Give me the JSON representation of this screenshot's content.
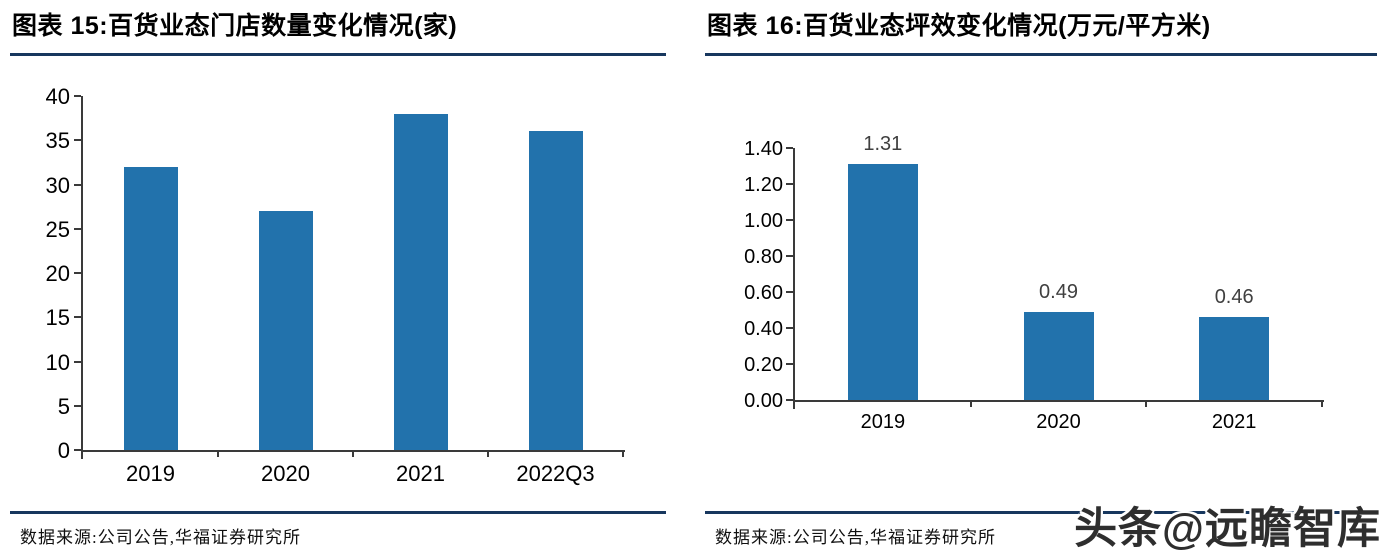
{
  "page": {
    "watermark": "头条@远瞻智库",
    "colors": {
      "bar": "#2272AC",
      "rule": "#17375E",
      "axis": "#3a3a3a",
      "data_label": "#404040"
    }
  },
  "chart_data": [
    {
      "type": "bar",
      "title": "图表 15:百货业态门店数量变化情况(家)",
      "categories": [
        "2019",
        "2020",
        "2021",
        "2022Q3"
      ],
      "values": [
        32,
        27,
        38,
        36
      ],
      "yticks": [
        "0",
        "5",
        "10",
        "15",
        "20",
        "25",
        "30",
        "35",
        "40"
      ],
      "ylim": [
        0,
        40
      ],
      "ytick_step": 5,
      "grid": false,
      "legend_position": "none",
      "data_labels_shown": false,
      "source": "数据来源:公司公告,华福证券研究所"
    },
    {
      "type": "bar",
      "title": "图表 16:百货业态坪效变化情况(万元/平方米)",
      "categories": [
        "2019",
        "2020",
        "2021"
      ],
      "values": [
        1.31,
        0.49,
        0.46
      ],
      "data_labels": [
        "1.31",
        "0.49",
        "0.46"
      ],
      "yticks": [
        "0.00",
        "0.20",
        "0.40",
        "0.60",
        "0.80",
        "1.00",
        "1.20",
        "1.40"
      ],
      "ylim": [
        0,
        1.4
      ],
      "ytick_step": 0.2,
      "grid": false,
      "legend_position": "none",
      "data_labels_shown": true,
      "source": "数据来源:公司公告,华福证券研究所"
    }
  ]
}
